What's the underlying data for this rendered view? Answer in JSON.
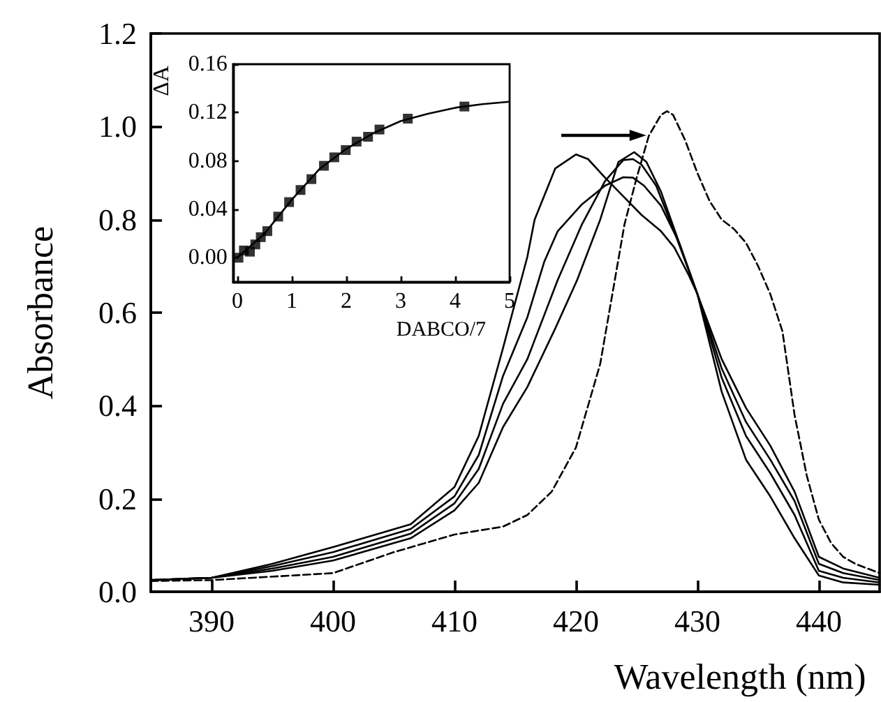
{
  "chart_data": [
    {
      "type": "line",
      "xlabel": "Wavelength (nm)",
      "ylabel": "Absorbance",
      "xlim": [
        385,
        445
      ],
      "xticks": [
        390,
        400,
        410,
        420,
        430,
        440
      ],
      "ylim": [
        0,
        1.2
      ],
      "yticks": [
        {
          "value": 0,
          "label": "0.0"
        },
        {
          "value": 0.2,
          "label": "0.2"
        },
        {
          "value": 0.4,
          "label": "0.4"
        },
        {
          "value": 0.6,
          "label": "0.6"
        },
        {
          "value": 0.8,
          "label": "0.8"
        },
        {
          "value": 1,
          "label": "1.0"
        },
        {
          "value": 1.2,
          "label": "1.2"
        }
      ],
      "marker": "none",
      "series": [
        {
          "color": "#000000",
          "line_style": "solid",
          "x": [
            385,
            390,
            395,
            400,
            406.4,
            410,
            412,
            414,
            416,
            416.6,
            418.3,
            420,
            421,
            422.4,
            423.9,
            425.4,
            427,
            428.1,
            429.3,
            430,
            432,
            434,
            436,
            438,
            440,
            442,
            445
          ],
          "values": [
            0.025,
            0.03,
            0.06,
            0.096,
            0.145,
            0.225,
            0.335,
            0.524,
            0.72,
            0.8,
            0.91,
            0.94,
            0.93,
            0.89,
            0.85,
            0.81,
            0.775,
            0.74,
            0.68,
            0.64,
            0.5,
            0.395,
            0.314,
            0.215,
            0.075,
            0.05,
            0.03
          ]
        },
        {
          "color": "#000000",
          "line_style": "solid",
          "x": [
            385,
            390,
            395,
            400,
            406.4,
            410,
            412,
            414,
            416,
            417.4,
            418.5,
            420.5,
            422.4,
            423.9,
            424.7,
            425.6,
            427,
            428.5,
            430,
            432,
            434,
            436,
            438,
            440,
            442,
            445
          ],
          "values": [
            0.025,
            0.03,
            0.055,
            0.085,
            0.135,
            0.205,
            0.294,
            0.464,
            0.59,
            0.71,
            0.775,
            0.833,
            0.873,
            0.891,
            0.89,
            0.873,
            0.83,
            0.75,
            0.64,
            0.48,
            0.365,
            0.284,
            0.195,
            0.06,
            0.04,
            0.025
          ]
        },
        {
          "color": "#000000",
          "line_style": "solid",
          "x": [
            385,
            390,
            395,
            400,
            406.4,
            410,
            412,
            414,
            416,
            418.5,
            420.5,
            422.4,
            423.9,
            424.7,
            425.4,
            426.6,
            428.1,
            430,
            432,
            434,
            436,
            438,
            440,
            442,
            445
          ],
          "values": [
            0.025,
            0.03,
            0.05,
            0.075,
            0.125,
            0.19,
            0.264,
            0.404,
            0.5,
            0.67,
            0.79,
            0.883,
            0.928,
            0.93,
            0.918,
            0.873,
            0.774,
            0.64,
            0.46,
            0.335,
            0.255,
            0.165,
            0.045,
            0.03,
            0.02
          ]
        },
        {
          "color": "#000000",
          "line_style": "solid",
          "x": [
            385,
            390,
            395,
            400,
            406.4,
            410,
            412,
            414,
            416,
            418.3,
            420.1,
            422,
            423.5,
            424.8,
            425.8,
            427,
            428.5,
            430,
            432,
            434,
            436,
            438,
            440,
            442,
            445
          ],
          "values": [
            0.025,
            0.03,
            0.045,
            0.067,
            0.115,
            0.175,
            0.234,
            0.354,
            0.44,
            0.566,
            0.67,
            0.8,
            0.924,
            0.945,
            0.924,
            0.86,
            0.75,
            0.64,
            0.43,
            0.284,
            0.205,
            0.115,
            0.035,
            0.02,
            0.015
          ]
        },
        {
          "color": "#000000",
          "line_style": "dashed",
          "x": [
            385,
            390,
            400,
            405,
            410,
            414,
            416,
            418,
            420,
            422,
            424,
            425,
            426,
            427,
            427.5,
            428,
            429,
            430,
            431,
            432,
            433,
            434,
            435,
            436,
            437,
            438,
            439,
            440,
            441,
            442,
            443,
            445
          ],
          "values": [
            0.023,
            0.025,
            0.04,
            0.085,
            0.123,
            0.14,
            0.165,
            0.215,
            0.31,
            0.49,
            0.79,
            0.89,
            0.98,
            1.025,
            1.033,
            1.025,
            0.97,
            0.9,
            0.84,
            0.8,
            0.78,
            0.75,
            0.7,
            0.64,
            0.56,
            0.38,
            0.25,
            0.155,
            0.105,
            0.075,
            0.06,
            0.04
          ]
        }
      ]
    },
    {
      "type": "scatter",
      "xlabel": "DABCO/7",
      "ylabel": "ΔA",
      "xlim": [
        -0.08,
        5
      ],
      "xticks": [
        0,
        1,
        2,
        3,
        4,
        5
      ],
      "ylim": [
        -0.02,
        0.16
      ],
      "yticks": [
        {
          "value": 0,
          "label": "0.00"
        },
        {
          "value": 0.04,
          "label": "0.04"
        },
        {
          "value": 0.08,
          "label": "0.08"
        },
        {
          "value": 0.12,
          "label": "0.12"
        },
        {
          "value": 0.16,
          "label": "0.16"
        }
      ],
      "series": [
        {
          "type": "scatter",
          "color": "#000000",
          "marker": "square",
          "x": [
            0.02,
            0.12,
            0.23,
            0.33,
            0.43,
            0.55,
            0.75,
            0.95,
            1.16,
            1.36,
            1.59,
            1.78,
            1.99,
            2.19,
            2.4,
            2.61,
            3.13,
            4.17
          ],
          "values": [
            0.0,
            0.006,
            0.005,
            0.011,
            0.017,
            0.022,
            0.034,
            0.046,
            0.056,
            0.065,
            0.076,
            0.083,
            0.089,
            0.096,
            0.1,
            0.106,
            0.115,
            0.125
          ]
        },
        {
          "type": "line",
          "color": "#000000",
          "marker": "none",
          "line_style": "solid",
          "x": [
            0,
            0.5,
            1,
            1.5,
            2,
            2.5,
            3,
            3.5,
            4,
            4.5,
            5
          ],
          "values": [
            0,
            0.02,
            0.048,
            0.073,
            0.09,
            0.103,
            0.113,
            0.119,
            0.124,
            0.127,
            0.129
          ]
        }
      ]
    }
  ]
}
